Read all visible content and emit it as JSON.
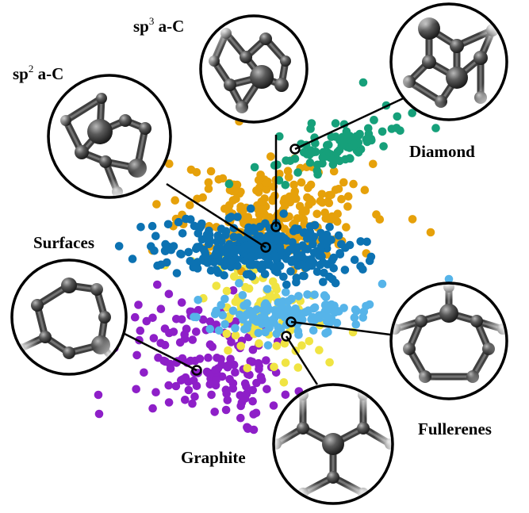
{
  "labels": {
    "sp2": {
      "prefix": "sp",
      "sup": "2",
      "suffix": " a-C"
    },
    "sp3": {
      "prefix": "sp",
      "sup": "3",
      "suffix": " a-C"
    },
    "diamond": "Diamond",
    "surfaces": "Surfaces",
    "fullerenes": "Fullerenes",
    "graphite": "Graphite"
  },
  "colors": {
    "diamond": "#16a07a",
    "sp3": "#e6a10a",
    "sp2": "#0c72b2",
    "graphite": "#f0e442",
    "fullerenes": "#56b4e9",
    "surfaces": "#8e1fc8"
  },
  "icons": {
    "sp2": "carbon-cluster-icon",
    "sp3": "carbon-cluster-icon",
    "diamond": "diamond-lattice-icon",
    "surfaces": "carbon-ring-icon",
    "fullerenes": "fullerene-cage-icon",
    "graphite": "graphene-sheet-icon"
  }
}
